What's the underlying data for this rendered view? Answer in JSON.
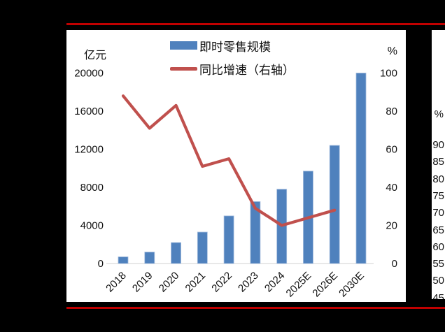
{
  "frame": {
    "background_color": "#000000",
    "rule_color": "#c00000"
  },
  "chart": {
    "unit_left": "亿元",
    "unit_right": "%",
    "legend": [
      {
        "label": "即时零售规模",
        "type": "bar",
        "color": "#4f81bd"
      },
      {
        "label": "同比增速（右轴）",
        "type": "line",
        "color": "#c0504d"
      }
    ]
  },
  "chart_data": {
    "type": "bar",
    "title": "",
    "categories": [
      "2018",
      "2019",
      "2020",
      "2021",
      "2022",
      "2023",
      "2024",
      "2025E",
      "2026E",
      "2030E"
    ],
    "series": [
      {
        "name": "即时零售规模",
        "type": "bar",
        "axis": "left",
        "color": "#4f81bd",
        "edge_color": "#a3bcdd",
        "values": [
          700,
          1200,
          2200,
          3300,
          5000,
          6500,
          7800,
          9700,
          12400,
          20000
        ]
      },
      {
        "name": "同比增速（右轴）",
        "type": "line",
        "axis": "right",
        "color": "#c0504d",
        "values": [
          88,
          71,
          83,
          51,
          55,
          29,
          20,
          24,
          28,
          null
        ]
      }
    ],
    "left_axis": {
      "label": "亿元",
      "min": 0,
      "max": 20000,
      "step": 4000
    },
    "right_axis": {
      "label": "%",
      "min": 0,
      "max": 100,
      "step": 20
    },
    "axis_line_color": "#d9d9d9",
    "grid": false,
    "legend_position": "top-center"
  },
  "side_chart": {
    "unit": "%",
    "ticks": [
      90,
      85,
      80,
      75,
      70,
      65,
      60,
      55,
      50,
      45
    ]
  }
}
